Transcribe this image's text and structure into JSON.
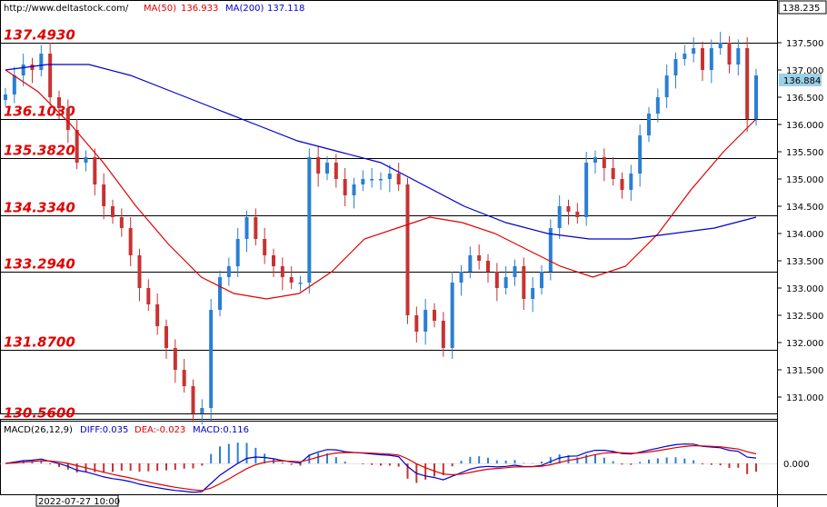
{
  "header": {
    "url": "http://www.deltastock.com/",
    "ma50_label": "MA(50)",
    "ma50_value": "136.933",
    "ma200_label": "MA(200)",
    "ma200_value": "137.118",
    "ma50_color": "#e00000",
    "ma200_color": "#0000cc"
  },
  "price_axis": {
    "top_value": "138.235",
    "current_price": "136.884",
    "ticks": [
      "137.500",
      "137.000",
      "136.500",
      "136.000",
      "135.500",
      "135.000",
      "134.500",
      "134.000",
      "133.500",
      "133.000",
      "132.500",
      "132.000",
      "131.500",
      "131.000"
    ]
  },
  "levels": [
    {
      "label": "137.4930",
      "value": 137.493
    },
    {
      "label": "136.1030",
      "value": 136.103
    },
    {
      "label": "135.3820",
      "value": 135.382
    },
    {
      "label": "134.3340",
      "value": 134.334
    },
    {
      "label": "133.2940",
      "value": 133.294
    },
    {
      "label": "131.8700",
      "value": 131.87
    },
    {
      "label": "130.5600",
      "value": 130.56
    }
  ],
  "macd": {
    "title": "MACD(26,12,9)",
    "diff_label": "DIFF:0.035",
    "dea_label": "DEA:-0.023",
    "macd_label": "MACD:0.116",
    "zero_tick": "0.000",
    "diff_color": "#0000cc",
    "dea_color": "#e00000",
    "macd_color": "#0000cc"
  },
  "time_axis": {
    "label": "2022-07-27 10:00"
  },
  "chart_data": {
    "type": "candlestick",
    "y_range": [
      130.62,
      138.235
    ],
    "series": [
      {
        "name": "Price (close)",
        "values": [
          136.55,
          136.9,
          137.1,
          137.0,
          137.3,
          136.5,
          136.3,
          135.9,
          135.3,
          135.4,
          134.9,
          134.5,
          134.3,
          134.1,
          133.6,
          133.0,
          132.7,
          132.3,
          131.9,
          131.5,
          131.2,
          130.7,
          130.8,
          132.6,
          133.2,
          133.4,
          133.9,
          134.3,
          133.9,
          133.6,
          133.4,
          133.2,
          133.1,
          133.1,
          135.4,
          135.1,
          135.3,
          135.0,
          134.7,
          134.9,
          135.0,
          135.0,
          135.0,
          135.1,
          134.9,
          132.5,
          132.2,
          132.6,
          132.4,
          131.9,
          133.1,
          133.3,
          133.6,
          133.5,
          133.3,
          133.0,
          133.2,
          133.4,
          132.8,
          133.0,
          133.3,
          134.1,
          134.5,
          134.4,
          134.3,
          135.3,
          135.4,
          135.2,
          135.0,
          134.8,
          135.1,
          135.8,
          136.2,
          136.5,
          136.9,
          137.2,
          137.3,
          137.4,
          137.0,
          137.4,
          137.5,
          137.1,
          137.4,
          136.1,
          136.9
        ]
      },
      {
        "name": "MA(50)",
        "values": [
          137.0,
          136.6,
          136.0,
          135.3,
          134.5,
          133.8,
          133.2,
          132.9,
          132.8,
          132.9,
          133.3,
          133.9,
          134.1,
          134.3,
          134.2,
          134.0,
          133.7,
          133.4,
          133.2,
          133.4,
          134.0,
          134.8,
          135.5,
          136.1
        ]
      },
      {
        "name": "MA(200)",
        "values": [
          137.0,
          137.1,
          137.1,
          136.9,
          136.6,
          136.3,
          136.0,
          135.7,
          135.5,
          135.3,
          134.9,
          134.5,
          134.2,
          134.0,
          133.9,
          133.9,
          134.0,
          134.1,
          134.3
        ]
      }
    ]
  }
}
